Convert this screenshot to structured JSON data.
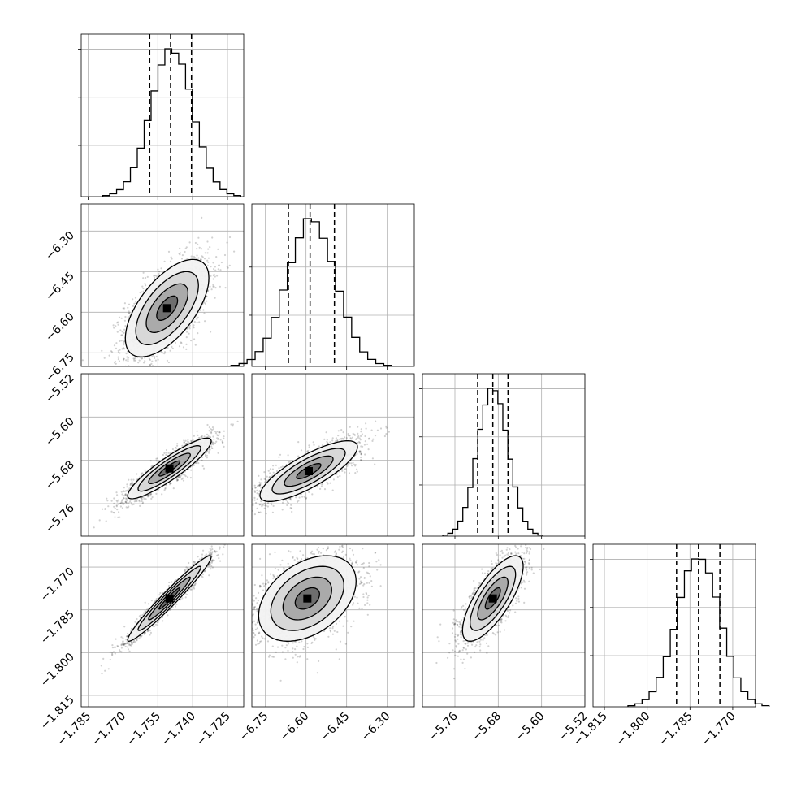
{
  "chart_data": {
    "type": "corner",
    "grid": true,
    "parameters": [
      {
        "axis_range": [
          -1.788,
          -1.718
        ],
        "ticks": [
          -1.785,
          -1.77,
          -1.755,
          -1.74,
          -1.725
        ],
        "tick_labels": [
          "−1.785",
          "−1.770",
          "−1.755",
          "−1.740",
          "−1.725"
        ],
        "mean": -1.749,
        "sd": 0.009,
        "quantiles": [
          -1.7585,
          -1.7495,
          -1.7405
        ]
      },
      {
        "axis_range": [
          -6.8,
          -6.2
        ],
        "ticks": [
          -6.75,
          -6.6,
          -6.45,
          -6.3
        ],
        "tick_labels": [
          "−6.75",
          "−6.60",
          "−6.45",
          "−6.30"
        ],
        "mean": -6.58,
        "sd": 0.09,
        "quantiles": [
          -6.665,
          -6.585,
          -6.495
        ]
      },
      {
        "axis_range": [
          -5.82,
          -5.52
        ],
        "ticks": [
          -5.76,
          -5.68,
          -5.6,
          -5.52
        ],
        "tick_labels": [
          "−5.76",
          "−5.68",
          "−5.60",
          "−5.52"
        ],
        "mean": -5.69,
        "sd": 0.028,
        "quantiles": [
          -5.718,
          -5.69,
          -5.662
        ]
      },
      {
        "axis_range": [
          -1.819,
          -1.762
        ],
        "ticks": [
          -1.815,
          -1.8,
          -1.785,
          -1.77
        ],
        "tick_labels": [
          "−1.815",
          "−1.800",
          "−1.785",
          "−1.770"
        ],
        "mean": -1.782,
        "sd": 0.0075,
        "quantiles": [
          -1.7897,
          -1.782,
          -1.7745
        ]
      }
    ],
    "correlations": {
      "0-1": 0.62,
      "0-2": 0.9,
      "0-3": 0.97,
      "1-2": 0.8,
      "1-3": 0.4,
      "2-3": 0.75
    },
    "pair_modes": {
      "0-1": [
        -1.751,
        -6.585
      ],
      "0-2": [
        -1.75,
        -5.695
      ],
      "0-3": [
        -1.75,
        -1.781
      ],
      "1-2": [
        -6.59,
        -5.7
      ],
      "1-3": [
        -6.595,
        -1.781
      ],
      "2-3": [
        -5.69,
        -1.781
      ]
    },
    "contour_levels_sigma": [
      0.5,
      1.0,
      1.5,
      2.0
    ],
    "scatter_points_per_panel": 2200,
    "histogram_bins": 20
  },
  "colors": {
    "axes": "#000000",
    "grid": "#b0b0b0",
    "scatter": "#000000",
    "density": "#000000"
  }
}
